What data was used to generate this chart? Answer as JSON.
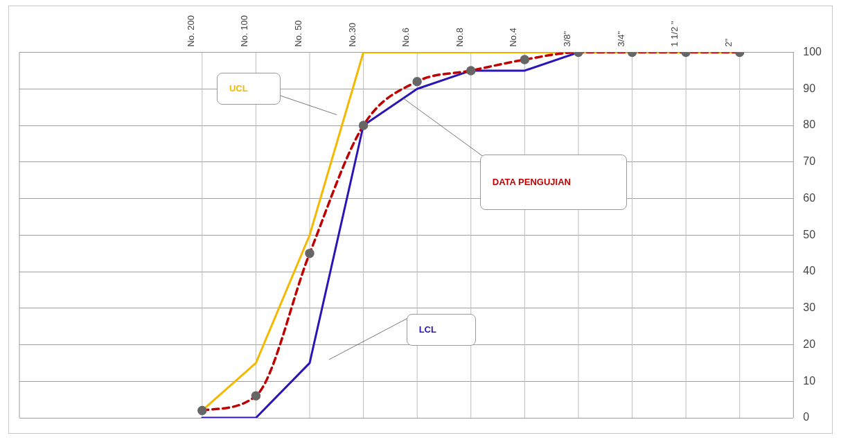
{
  "chart_data": {
    "type": "line",
    "categories": [
      "No. 200",
      "No. 100",
      "No. 50",
      "No.30",
      "No.6",
      "No.8",
      "No.4",
      "3/8\"",
      "3/4\"",
      "1 1/2 \"",
      "2\""
    ],
    "series": [
      {
        "name": "UCL",
        "color": "#f5b800",
        "values": [
          2,
          15,
          50,
          100,
          100,
          100,
          100,
          100,
          100,
          100,
          100
        ],
        "marker": "none",
        "line_style": "solid"
      },
      {
        "name": "DATA PENGUJIAN",
        "color": "#c00000",
        "values": [
          2,
          6,
          45,
          80,
          92,
          95,
          98,
          100,
          100,
          100,
          100
        ],
        "marker": "circle",
        "line_style": "dashed"
      },
      {
        "name": "LCL",
        "color": "#2a16b8",
        "values": [
          0,
          0,
          15,
          80,
          90,
          95,
          95,
          100,
          null,
          null,
          null
        ],
        "marker": "none",
        "line_style": "solid"
      }
    ],
    "ylim": [
      0,
      100
    ],
    "yticks": [
      0,
      10,
      20,
      30,
      40,
      50,
      60,
      70,
      80,
      90,
      100
    ],
    "grid": true,
    "legend": false
  }
}
